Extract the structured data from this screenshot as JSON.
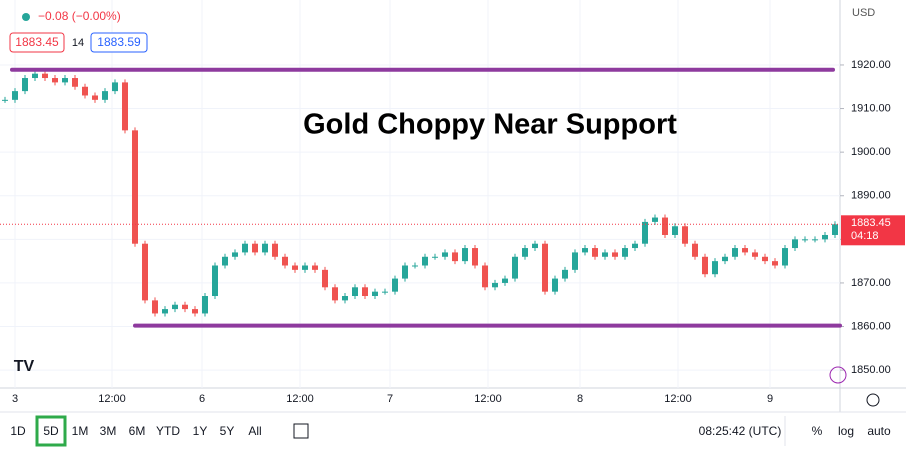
{
  "chart_data": {
    "type": "candlestick",
    "title": "Gold Choppy Near Support",
    "change": "−0.08 (−0.00%)",
    "bid": "1883.45",
    "spread": "14",
    "ask": "1883.59",
    "currency": "USD",
    "last_price": {
      "value": 1883.45,
      "label": "1883.45",
      "countdown": "04:18",
      "color": "#f23645"
    },
    "up_color": "#26a69a",
    "down_color": "#ef5350",
    "closes": [
      1912,
      1914,
      1917,
      1918,
      1917,
      1916,
      1917,
      1915,
      1913,
      1912,
      1914,
      1916,
      1905,
      1879,
      1866,
      1863,
      1864,
      1865,
      1864,
      1863,
      1867,
      1874,
      1876,
      1877,
      1879,
      1877,
      1879,
      1876,
      1874,
      1873,
      1874,
      1873,
      1869,
      1866,
      1867,
      1869,
      1867,
      1868,
      1868,
      1871,
      1874,
      1874,
      1876,
      1876,
      1877,
      1875,
      1878,
      1874,
      1869,
      1870,
      1871,
      1876,
      1878,
      1879,
      1868,
      1871,
      1873,
      1877,
      1878,
      1876,
      1877,
      1876,
      1878,
      1879,
      1884,
      1885,
      1881,
      1883,
      1879,
      1876,
      1872,
      1875,
      1876,
      1878,
      1877,
      1876,
      1875,
      1874,
      1878,
      1880,
      1880,
      1880,
      1881,
      1883.45
    ],
    "xlim": [
      0,
      84
    ],
    "xticks": [
      {
        "value": 1.5,
        "label": "3"
      },
      {
        "value": 11.2,
        "label": "12:00"
      },
      {
        "value": 20.2,
        "label": "6"
      },
      {
        "value": 30,
        "label": "12:00"
      },
      {
        "value": 39,
        "label": "7"
      },
      {
        "value": 48.8,
        "label": "12:00"
      },
      {
        "value": 58,
        "label": "8"
      },
      {
        "value": 67.8,
        "label": "12:00"
      },
      {
        "value": 77,
        "label": "9"
      }
    ],
    "ylim": [
      1845.9,
      1934.9
    ],
    "yticks": [
      {
        "value": 1850,
        "label": "1850.00"
      },
      {
        "value": 1860,
        "label": "1860.00"
      },
      {
        "value": 1870,
        "label": "1870.00"
      },
      {
        "value": 1880,
        "label": "1880.00"
      },
      {
        "value": 1890,
        "label": "1890.00"
      },
      {
        "value": 1900,
        "label": "1900.00"
      },
      {
        "value": 1910,
        "label": "1910.00"
      },
      {
        "value": 1920,
        "label": "1920.00"
      }
    ],
    "levels": [
      {
        "value": 1918.9,
        "x": [
          1.2,
          83.3
        ],
        "color": "#8e3a9e"
      },
      {
        "value": 1860.2,
        "x": [
          13.5,
          84
        ],
        "color": "#8e3a9e"
      }
    ],
    "ranges": [
      "1D",
      "5D",
      "1M",
      "3M",
      "6M",
      "YTD",
      "1Y",
      "5Y",
      "All"
    ],
    "selected_range": 1,
    "clock": "08:25:42 (UTC)",
    "options": [
      "%",
      "log",
      "auto"
    ]
  }
}
